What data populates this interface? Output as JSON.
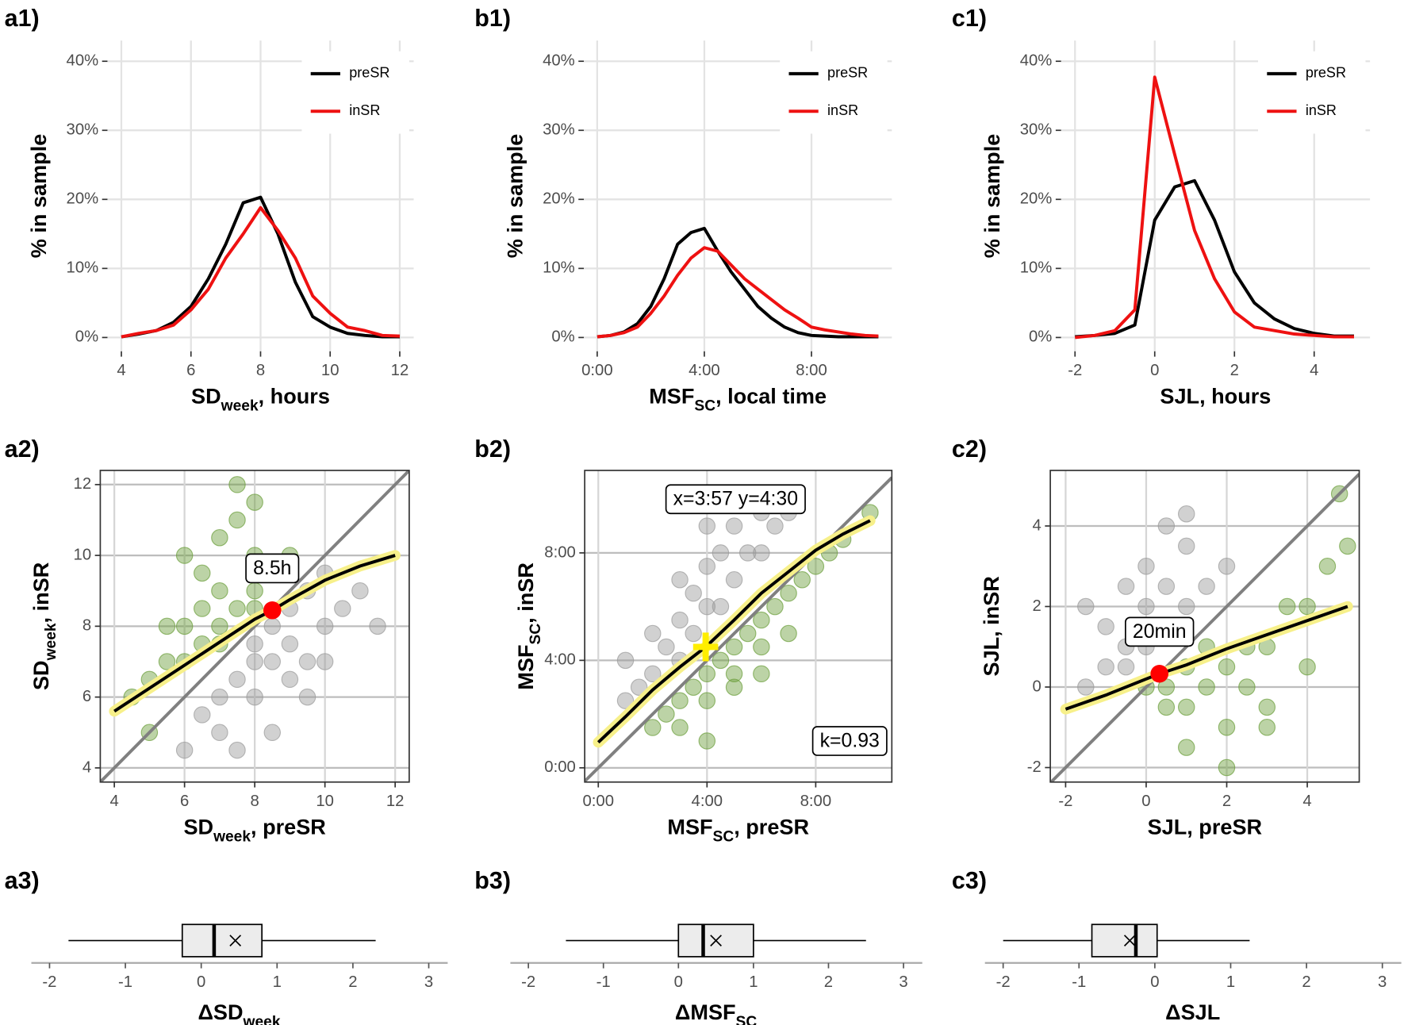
{
  "chart_data": [
    {
      "type": "line",
      "label": "a1)",
      "ylabel": [
        "% in sample"
      ],
      "xlabel": [
        "SD",
        "week",
        ", hours"
      ],
      "x": [
        4,
        4.5,
        5,
        5.5,
        6,
        6.5,
        7,
        7.5,
        8,
        8.5,
        9,
        9.5,
        10,
        10.5,
        11,
        11.5,
        12
      ],
      "series": [
        {
          "name": "preSR",
          "color": "#000000",
          "values": [
            0.1,
            0.5,
            1,
            2.2,
            4.5,
            8.5,
            13.5,
            19.5,
            20.3,
            15,
            8,
            3,
            1.5,
            0.6,
            0.3,
            0.1,
            0.1
          ]
        },
        {
          "name": "inSR",
          "color": "#ee1111",
          "values": [
            0.1,
            0.6,
            1,
            1.8,
            4,
            7,
            11.5,
            15,
            18.8,
            15.5,
            11.5,
            6,
            3.5,
            1.5,
            1,
            0.3,
            0.2
          ]
        }
      ],
      "xlim": [
        3.6,
        12.4
      ],
      "ylim": [
        -2,
        43
      ],
      "xticks": [
        4,
        6,
        8,
        10,
        12
      ],
      "yticks": [
        {
          "value": 0,
          "label": "0%"
        },
        {
          "value": 10,
          "label": "10%"
        },
        {
          "value": 20,
          "label": "20%"
        },
        {
          "value": 30,
          "label": "30%"
        },
        {
          "value": 40,
          "label": "40%"
        }
      ],
      "grid": true,
      "legend": "top-right"
    },
    {
      "type": "line",
      "label": "b1)",
      "ylabel": [
        "% in sample"
      ],
      "xlabel": [
        "MSF",
        "SC",
        ", local time"
      ],
      "x": [
        0,
        0.5,
        1,
        1.5,
        2,
        2.5,
        3,
        3.5,
        4,
        4.5,
        5,
        5.5,
        6,
        6.5,
        7,
        7.5,
        8,
        8.5,
        9,
        9.5,
        10,
        10.5
      ],
      "series": [
        {
          "name": "preSR",
          "color": "#000000",
          "values": [
            0.1,
            0.3,
            0.8,
            2,
            4.5,
            8.5,
            13.5,
            15.2,
            15.8,
            12.5,
            9.5,
            7,
            4.5,
            2.8,
            1.5,
            0.7,
            0.3,
            0.2,
            0.1,
            0.1,
            0.1,
            0.1
          ]
        },
        {
          "name": "inSR",
          "color": "#ee1111",
          "values": [
            0.1,
            0.3,
            0.7,
            1.5,
            3.5,
            6,
            9,
            11.5,
            13,
            12.5,
            10.5,
            8.5,
            7,
            5.5,
            4,
            2.8,
            1.5,
            1.1,
            0.8,
            0.5,
            0.3,
            0.2
          ]
        }
      ],
      "xlim": [
        -0.5,
        11
      ],
      "ylim": [
        -2,
        43
      ],
      "xticks": [
        {
          "value": 0,
          "label": "0:00"
        },
        {
          "value": 4,
          "label": "4:00"
        },
        {
          "value": 8,
          "label": "8:00"
        }
      ],
      "yticks": [
        {
          "value": 0,
          "label": "0%"
        },
        {
          "value": 10,
          "label": "10%"
        },
        {
          "value": 20,
          "label": "20%"
        },
        {
          "value": 30,
          "label": "30%"
        },
        {
          "value": 40,
          "label": "40%"
        }
      ],
      "grid": true,
      "legend": "top-right"
    },
    {
      "type": "line",
      "label": "c1)",
      "ylabel": [
        "% in sample"
      ],
      "xlabel": [
        "SJL, hours"
      ],
      "x": [
        -2,
        -1.5,
        -1,
        -0.5,
        0,
        0.5,
        1,
        1.5,
        2,
        2.5,
        3,
        3.5,
        4,
        4.5,
        5
      ],
      "series": [
        {
          "name": "preSR",
          "color": "#000000",
          "values": [
            0.1,
            0.3,
            0.6,
            1.8,
            17,
            21.8,
            22.7,
            17,
            9.5,
            5,
            2.7,
            1.3,
            0.6,
            0.2,
            0.2
          ]
        },
        {
          "name": "inSR",
          "color": "#ee1111",
          "values": [
            0,
            0.3,
            1,
            4,
            37.7,
            26.5,
            15.5,
            8.5,
            3.7,
            1.5,
            1,
            0.5,
            0.3,
            0.1,
            0.1
          ]
        }
      ],
      "xlim": [
        -2.35,
        5.4
      ],
      "ylim": [
        -2,
        43
      ],
      "xticks": [
        -2,
        0,
        2,
        4
      ],
      "yticks": [
        {
          "value": 0,
          "label": "0%"
        },
        {
          "value": 10,
          "label": "10%"
        },
        {
          "value": 20,
          "label": "20%"
        },
        {
          "value": 30,
          "label": "30%"
        },
        {
          "value": 40,
          "label": "40%"
        }
      ],
      "grid": true,
      "legend": "top-right"
    },
    {
      "type": "scatter",
      "label": "a2)",
      "xlabel": [
        "SD",
        "week",
        ", preSR"
      ],
      "ylabel": [
        "SD",
        "week",
        ", inSR"
      ],
      "clouds": [
        {
          "color": "#9a9a9a",
          "x": [
            7,
            7.5,
            8,
            8,
            8.5,
            8.5,
            9,
            9,
            9.5,
            9.5,
            10,
            10,
            10.5,
            11,
            6.5,
            7,
            8,
            9,
            9.5,
            10,
            11.5,
            6,
            7.5,
            8.5
          ],
          "y": [
            6,
            6.5,
            7,
            7.5,
            7,
            8,
            7.5,
            8.5,
            7,
            9,
            8,
            9.5,
            8.5,
            9,
            5.5,
            5,
            6,
            6.5,
            6,
            7,
            8,
            4.5,
            4.5,
            5
          ]
        },
        {
          "color": "#6b9e3a",
          "x": [
            5,
            5.5,
            6,
            6,
            6.5,
            6.5,
            7,
            7,
            7,
            7.5,
            7.5,
            8,
            8,
            8,
            8.5,
            4.5,
            5,
            6,
            7.5,
            9,
            5.5,
            6.5,
            7,
            8
          ],
          "y": [
            6.5,
            7,
            8,
            7,
            8.5,
            9.5,
            8,
            9,
            10.5,
            8.5,
            11,
            9,
            10,
            8.5,
            9.5,
            6,
            5,
            10,
            12,
            10,
            8,
            7.5,
            7.5,
            11.5
          ]
        }
      ],
      "smooth": {
        "color": "#000000",
        "x": [
          4,
          5,
          6,
          7,
          8,
          8.5,
          9,
          10,
          11,
          12
        ],
        "y": [
          5.6,
          6.25,
          6.9,
          7.55,
          8.2,
          8.45,
          8.75,
          9.3,
          9.7,
          10
        ]
      },
      "marker": {
        "shape": "circle",
        "color": "#ff0000",
        "x": 8.5,
        "y": 8.45,
        "label": "8.5h"
      },
      "xlim": [
        3.6,
        12.4
      ],
      "ylim": [
        3.6,
        12.4
      ],
      "xticks": [
        4,
        6,
        8,
        10,
        12
      ],
      "yticks": [
        4,
        6,
        8,
        10,
        12
      ],
      "grid": true
    },
    {
      "type": "scatter",
      "label": "b2)",
      "xlabel": [
        "MSF",
        "SC",
        ", preSR"
      ],
      "ylabel": [
        "MSF",
        "SC",
        ", inSR"
      ],
      "clouds": [
        {
          "color": "#9a9a9a",
          "x": [
            1,
            1.5,
            2,
            2.5,
            3,
            3,
            3.5,
            3.5,
            4,
            4,
            4.5,
            4.5,
            5,
            5,
            5.5,
            6,
            6,
            6.5,
            7,
            2,
            3,
            4,
            5,
            1
          ],
          "y": [
            2.5,
            3,
            3.5,
            4.5,
            4,
            5.5,
            5,
            6.5,
            6,
            7.5,
            6,
            8,
            7,
            9,
            8,
            8,
            9.5,
            9,
            9.5,
            5,
            7,
            9,
            10,
            4
          ]
        },
        {
          "color": "#6b9e3a",
          "x": [
            2,
            2.5,
            3,
            3.5,
            4,
            4,
            4.5,
            5,
            5,
            5.5,
            6,
            6,
            6.5,
            7,
            7.5,
            8,
            8.5,
            9,
            3,
            4,
            5,
            6,
            7,
            10
          ],
          "y": [
            1.5,
            2,
            2.5,
            3,
            3.5,
            2.5,
            4,
            4.5,
            3.5,
            5,
            5.5,
            4.5,
            6,
            6.5,
            7,
            7.5,
            8,
            8.5,
            1.5,
            1,
            3,
            3.5,
            5,
            9.5
          ]
        }
      ],
      "smooth": {
        "color": "#000000",
        "x": [
          0,
          1,
          2,
          3,
          3.95,
          5,
          6,
          7,
          8,
          9,
          10
        ],
        "y": [
          0.95,
          1.9,
          2.9,
          3.75,
          4.5,
          5.5,
          6.5,
          7.3,
          8.1,
          8.7,
          9.2
        ]
      },
      "marker": {
        "shape": "plus",
        "color": "#ffee00",
        "x": 3.95,
        "y": 4.5
      },
      "annotations": [
        "x=3:57 y=4:30",
        "k=0.93"
      ],
      "xlim": [
        -0.5,
        10.8
      ],
      "ylim": [
        -0.53,
        11.07
      ],
      "xticks": [
        {
          "value": 0,
          "label": "0:00"
        },
        {
          "value": 4,
          "label": "4:00"
        },
        {
          "value": 8,
          "label": "8:00"
        }
      ],
      "yticks": [
        {
          "value": 0,
          "label": "0:00"
        },
        {
          "value": 4,
          "label": "4:00"
        },
        {
          "value": 8,
          "label": "8:00"
        }
      ],
      "grid": true
    },
    {
      "type": "scatter",
      "label": "c2)",
      "xlabel": [
        "SJL, preSR"
      ],
      "ylabel": [
        "SJL, inSR"
      ],
      "clouds": [
        {
          "color": "#9a9a9a",
          "x": [
            -1.5,
            -1,
            -1,
            -0.5,
            -0.5,
            0,
            0,
            0,
            0.5,
            0.5,
            1,
            1,
            1.5,
            -1.5,
            0.5,
            1,
            2,
            -0.5
          ],
          "y": [
            0,
            0.5,
            1.5,
            0.5,
            1,
            1,
            2,
            3,
            1.5,
            2.5,
            2,
            3.5,
            2.5,
            2,
            4,
            4.3,
            3,
            2.5
          ]
        },
        {
          "color": "#6b9e3a",
          "x": [
            0,
            0.5,
            1,
            1,
            1.5,
            1.5,
            2,
            2,
            2.5,
            2.5,
            3,
            3,
            3.5,
            4,
            4.5,
            5,
            1,
            2,
            3,
            4,
            0.5,
            4.8
          ],
          "y": [
            0,
            0,
            0.5,
            -0.5,
            0,
            1,
            0.5,
            -1,
            1,
            0,
            1,
            -0.5,
            2,
            2,
            3,
            3.5,
            -1.5,
            -2,
            -1,
            0.5,
            -0.5,
            4.8
          ]
        }
      ],
      "smooth": {
        "color": "#000000",
        "x": [
          -2,
          -1,
          0,
          0.33,
          1,
          2,
          3,
          4,
          5
        ],
        "y": [
          -0.55,
          -0.2,
          0.2,
          0.33,
          0.55,
          0.95,
          1.3,
          1.65,
          2
        ]
      },
      "marker": {
        "shape": "circle",
        "color": "#ff0000",
        "x": 0.33,
        "y": 0.33,
        "label": "20min"
      },
      "xlim": [
        -2.38,
        5.29
      ],
      "ylim": [
        -2.36,
        5.38
      ],
      "xticks": [
        -2,
        0,
        2,
        4
      ],
      "yticks": [
        -2,
        0,
        2,
        4
      ],
      "grid": true
    },
    {
      "type": "box",
      "label": "a3)",
      "xlabel": [
        "ΔSD",
        "week"
      ],
      "box": {
        "min": -1.75,
        "q1": -0.25,
        "median": 0.17,
        "q3": 0.8,
        "max": 2.3,
        "mean": 0.45
      },
      "xlim": [
        -2.24,
        3.25
      ],
      "xticks": [
        -2,
        -1,
        0,
        1,
        2,
        3
      ]
    },
    {
      "type": "box",
      "label": "b3)",
      "xlabel": [
        "ΔMSF",
        "SC"
      ],
      "box": {
        "min": -1.5,
        "q1": 0,
        "median": 0.33,
        "q3": 1,
        "max": 2.5,
        "mean": 0.5
      },
      "xlim": [
        -2.24,
        3.25
      ],
      "xticks": [
        -2,
        -1,
        0,
        1,
        2,
        3
      ]
    },
    {
      "type": "box",
      "label": "c3)",
      "xlabel": [
        "ΔSJL"
      ],
      "box": {
        "min": -2,
        "q1": -0.83,
        "median": -0.25,
        "q3": 0.03,
        "max": 1.25,
        "mean": -0.33
      },
      "xlim": [
        -2.24,
        3.25
      ],
      "xticks": [
        -2,
        -1,
        0,
        1,
        2,
        3
      ]
    }
  ]
}
